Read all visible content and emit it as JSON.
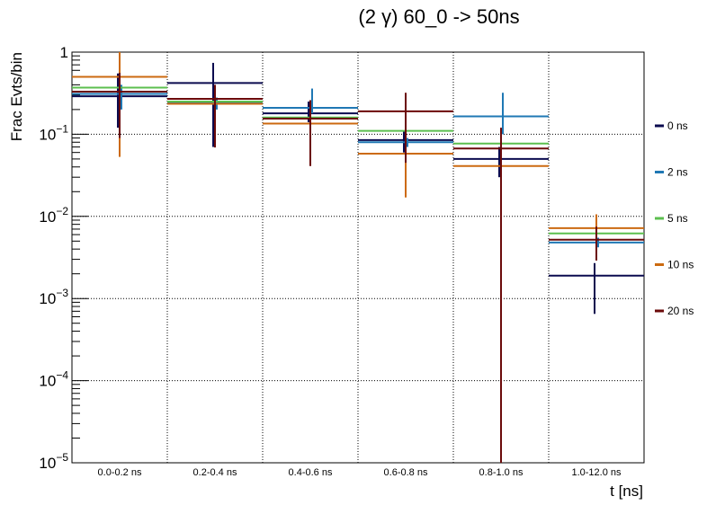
{
  "chart_data": {
    "type": "line",
    "title": "(2 γ) 60_0 -> 50ns",
    "xlabel": "t [ns]",
    "ylabel": "Frac Evts/bin",
    "yscale": "log",
    "ylim": [
      1e-05,
      1
    ],
    "grid": true,
    "legend_placement": "right",
    "categories": [
      "0.0-0.2 ns",
      "0.2-0.4 ns",
      "0.4-0.6 ns",
      "0.6-0.8 ns",
      "0.8-1.0 ns",
      "1.0-12.0 ns"
    ],
    "y_ticks": [
      {
        "value": 1,
        "label": "1"
      },
      {
        "value": 0.1,
        "base": "10",
        "exp": "−1"
      },
      {
        "value": 0.01,
        "base": "10",
        "exp": "−2"
      },
      {
        "value": 0.001,
        "base": "10",
        "exp": "−3"
      },
      {
        "value": 0.0001,
        "base": "10",
        "exp": "−4"
      },
      {
        "value": 1e-05,
        "base": "10",
        "exp": "−5"
      }
    ],
    "series": [
      {
        "name": "0 ns",
        "color": "#0b0b4f",
        "values": [
          0.29,
          0.42,
          0.18,
          0.085,
          0.05,
          0.0019
        ],
        "err_low": [
          0.12,
          0.07,
          0.14,
          0.06,
          0.03,
          0.00065
        ],
        "err_high": [
          0.55,
          0.74,
          0.25,
          0.11,
          0.07,
          0.0027
        ]
      },
      {
        "name": "2 ns",
        "color": "#1f78b4",
        "values": [
          0.31,
          0.24,
          0.21,
          0.08,
          0.165,
          0.0048
        ],
        "err_low": [
          0.2,
          0.2,
          0.18,
          0.07,
          0.1,
          0.0042
        ],
        "err_high": [
          0.4,
          0.28,
          0.36,
          0.09,
          0.32,
          0.0055
        ]
      },
      {
        "name": "5 ns",
        "color": "#5cbf4f",
        "values": [
          0.37,
          0.25,
          0.16,
          0.11,
          0.077,
          0.0062
        ],
        "err_low": [
          0.3,
          0.22,
          0.14,
          0.1,
          0.07,
          0.0058
        ],
        "err_high": [
          0.45,
          0.28,
          0.18,
          0.12,
          0.085,
          0.0066
        ]
      },
      {
        "name": "10 ns",
        "color": "#cc6a10",
        "values": [
          0.5,
          0.235,
          0.135,
          0.058,
          0.041,
          0.0072
        ],
        "err_low": [
          0.053,
          0.2,
          0.12,
          0.017,
          0.035,
          0.0045
        ],
        "err_high": [
          1.0,
          0.26,
          0.15,
          0.1,
          0.047,
          0.0106
        ]
      },
      {
        "name": "20 ns",
        "color": "#6b0a0a",
        "values": [
          0.33,
          0.27,
          0.155,
          0.19,
          0.067,
          0.0052
        ],
        "err_low": [
          0.09,
          0.069,
          0.041,
          0.045,
          1e-05,
          0.0029
        ],
        "err_high": [
          0.56,
          0.4,
          0.26,
          0.32,
          0.12,
          0.0075
        ]
      }
    ]
  }
}
